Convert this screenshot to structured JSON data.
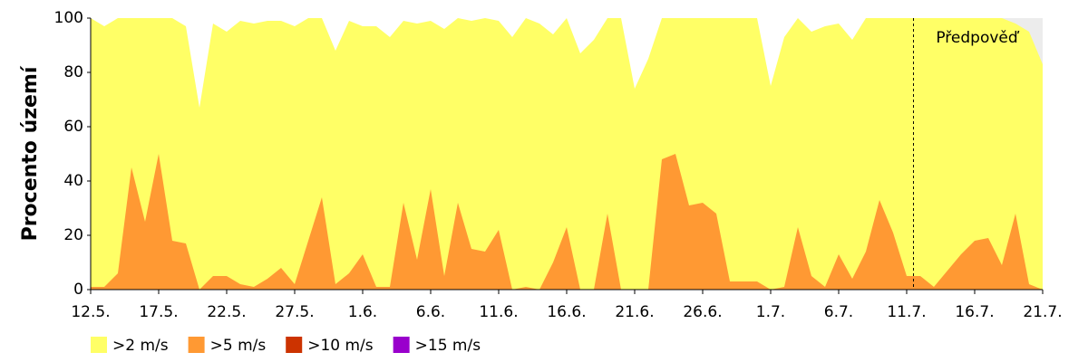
{
  "chart_data": {
    "type": "area",
    "y_label": "Procento území",
    "x": [
      0,
      1,
      2,
      3,
      4,
      5,
      6,
      7,
      8,
      9,
      10,
      11,
      12,
      13,
      14,
      15,
      16,
      17,
      18,
      19,
      20,
      21,
      22,
      23,
      24,
      25,
      26,
      27,
      28,
      29,
      30,
      31,
      32,
      33,
      34,
      35,
      36,
      37,
      38,
      39,
      40,
      41,
      42,
      43,
      44,
      45,
      46,
      47,
      48,
      49,
      50,
      51,
      52,
      53,
      54,
      55,
      56,
      57,
      58,
      59,
      60,
      61,
      62,
      63,
      64,
      65,
      66,
      67,
      68,
      69,
      70
    ],
    "xlim": [
      0,
      70
    ],
    "xticks": [
      {
        "value": 0,
        "label": "12.5."
      },
      {
        "value": 5,
        "label": "17.5."
      },
      {
        "value": 10,
        "label": "22.5."
      },
      {
        "value": 15,
        "label": "27.5."
      },
      {
        "value": 20,
        "label": "1.6."
      },
      {
        "value": 25,
        "label": "6.6."
      },
      {
        "value": 30,
        "label": "11.6."
      },
      {
        "value": 35,
        "label": "16.6."
      },
      {
        "value": 40,
        "label": "21.6."
      },
      {
        "value": 45,
        "label": "26.6."
      },
      {
        "value": 50,
        "label": "1.7."
      },
      {
        "value": 55,
        "label": "6.7."
      },
      {
        "value": 60,
        "label": "11.7."
      },
      {
        "value": 65,
        "label": "16.7."
      },
      {
        "value": 70,
        "label": "21.7."
      }
    ],
    "ylim": [
      0,
      100
    ],
    "yticks": [
      0,
      20,
      40,
      60,
      80,
      100
    ],
    "grid": false,
    "series": [
      {
        "name": ">2 m/s",
        "color": "#ffff66",
        "values": [
          100,
          97,
          100,
          100,
          100,
          100,
          100,
          97,
          67,
          98,
          95,
          99,
          98,
          99,
          99,
          97,
          100,
          100,
          88,
          99,
          97,
          97,
          93,
          99,
          98,
          99,
          96,
          100,
          99,
          100,
          99,
          93,
          100,
          98,
          94,
          100,
          87,
          92,
          100,
          100,
          74,
          85,
          100,
          100,
          100,
          100,
          100,
          100,
          100,
          100,
          75,
          93,
          100,
          95,
          97,
          98,
          92,
          100,
          100,
          100,
          100,
          100,
          100,
          100,
          100,
          100,
          100,
          100,
          98,
          95,
          83
        ]
      },
      {
        "name": ">5 m/s",
        "color": "#ff9933",
        "values": [
          1,
          1,
          6,
          45,
          25,
          50,
          18,
          17,
          0,
          5,
          5,
          2,
          1,
          4,
          8,
          2,
          18,
          34,
          2,
          6,
          13,
          1,
          1,
          32,
          11,
          37,
          5,
          32,
          15,
          14,
          22,
          0,
          1,
          0,
          10,
          23,
          0,
          0,
          28,
          0,
          0,
          0,
          48,
          50,
          31,
          32,
          28,
          3,
          3,
          3,
          0,
          1,
          23,
          5,
          1,
          13,
          4,
          14,
          33,
          21,
          5,
          5,
          1,
          7,
          13,
          18,
          19,
          9,
          28,
          2,
          0
        ]
      },
      {
        "name": ">10 m/s",
        "color": "#cc3300",
        "values": [
          0,
          0,
          0,
          0,
          0,
          0,
          0,
          0,
          0,
          0,
          0,
          0,
          0,
          0,
          0,
          0,
          0,
          0,
          0,
          0,
          0,
          0,
          0,
          0,
          0,
          0,
          0,
          0,
          0,
          0,
          0,
          0,
          0,
          0,
          0,
          0,
          0,
          0,
          0,
          0,
          0,
          0,
          0,
          0,
          0,
          0,
          0,
          0,
          0,
          0,
          0,
          0,
          0,
          0,
          0,
          0,
          0,
          0,
          0,
          0,
          0,
          0,
          0,
          0,
          0,
          0,
          0,
          0,
          0,
          0,
          0
        ]
      },
      {
        "name": ">15 m/s",
        "color": "#9900cc",
        "values": [
          0,
          0,
          0,
          0,
          0,
          0,
          0,
          0,
          0,
          0,
          0,
          0,
          0,
          0,
          0,
          0,
          0,
          0,
          0,
          0,
          0,
          0,
          0,
          0,
          0,
          0,
          0,
          0,
          0,
          0,
          0,
          0,
          0,
          0,
          0,
          0,
          0,
          0,
          0,
          0,
          0,
          0,
          0,
          0,
          0,
          0,
          0,
          0,
          0,
          0,
          0,
          0,
          0,
          0,
          0,
          0,
          0,
          0,
          0,
          0,
          0,
          0,
          0,
          0,
          0,
          0,
          0,
          0,
          0,
          0,
          0
        ]
      }
    ],
    "annotations": [
      {
        "text": "Předpověď",
        "x": 60.5
      }
    ]
  }
}
